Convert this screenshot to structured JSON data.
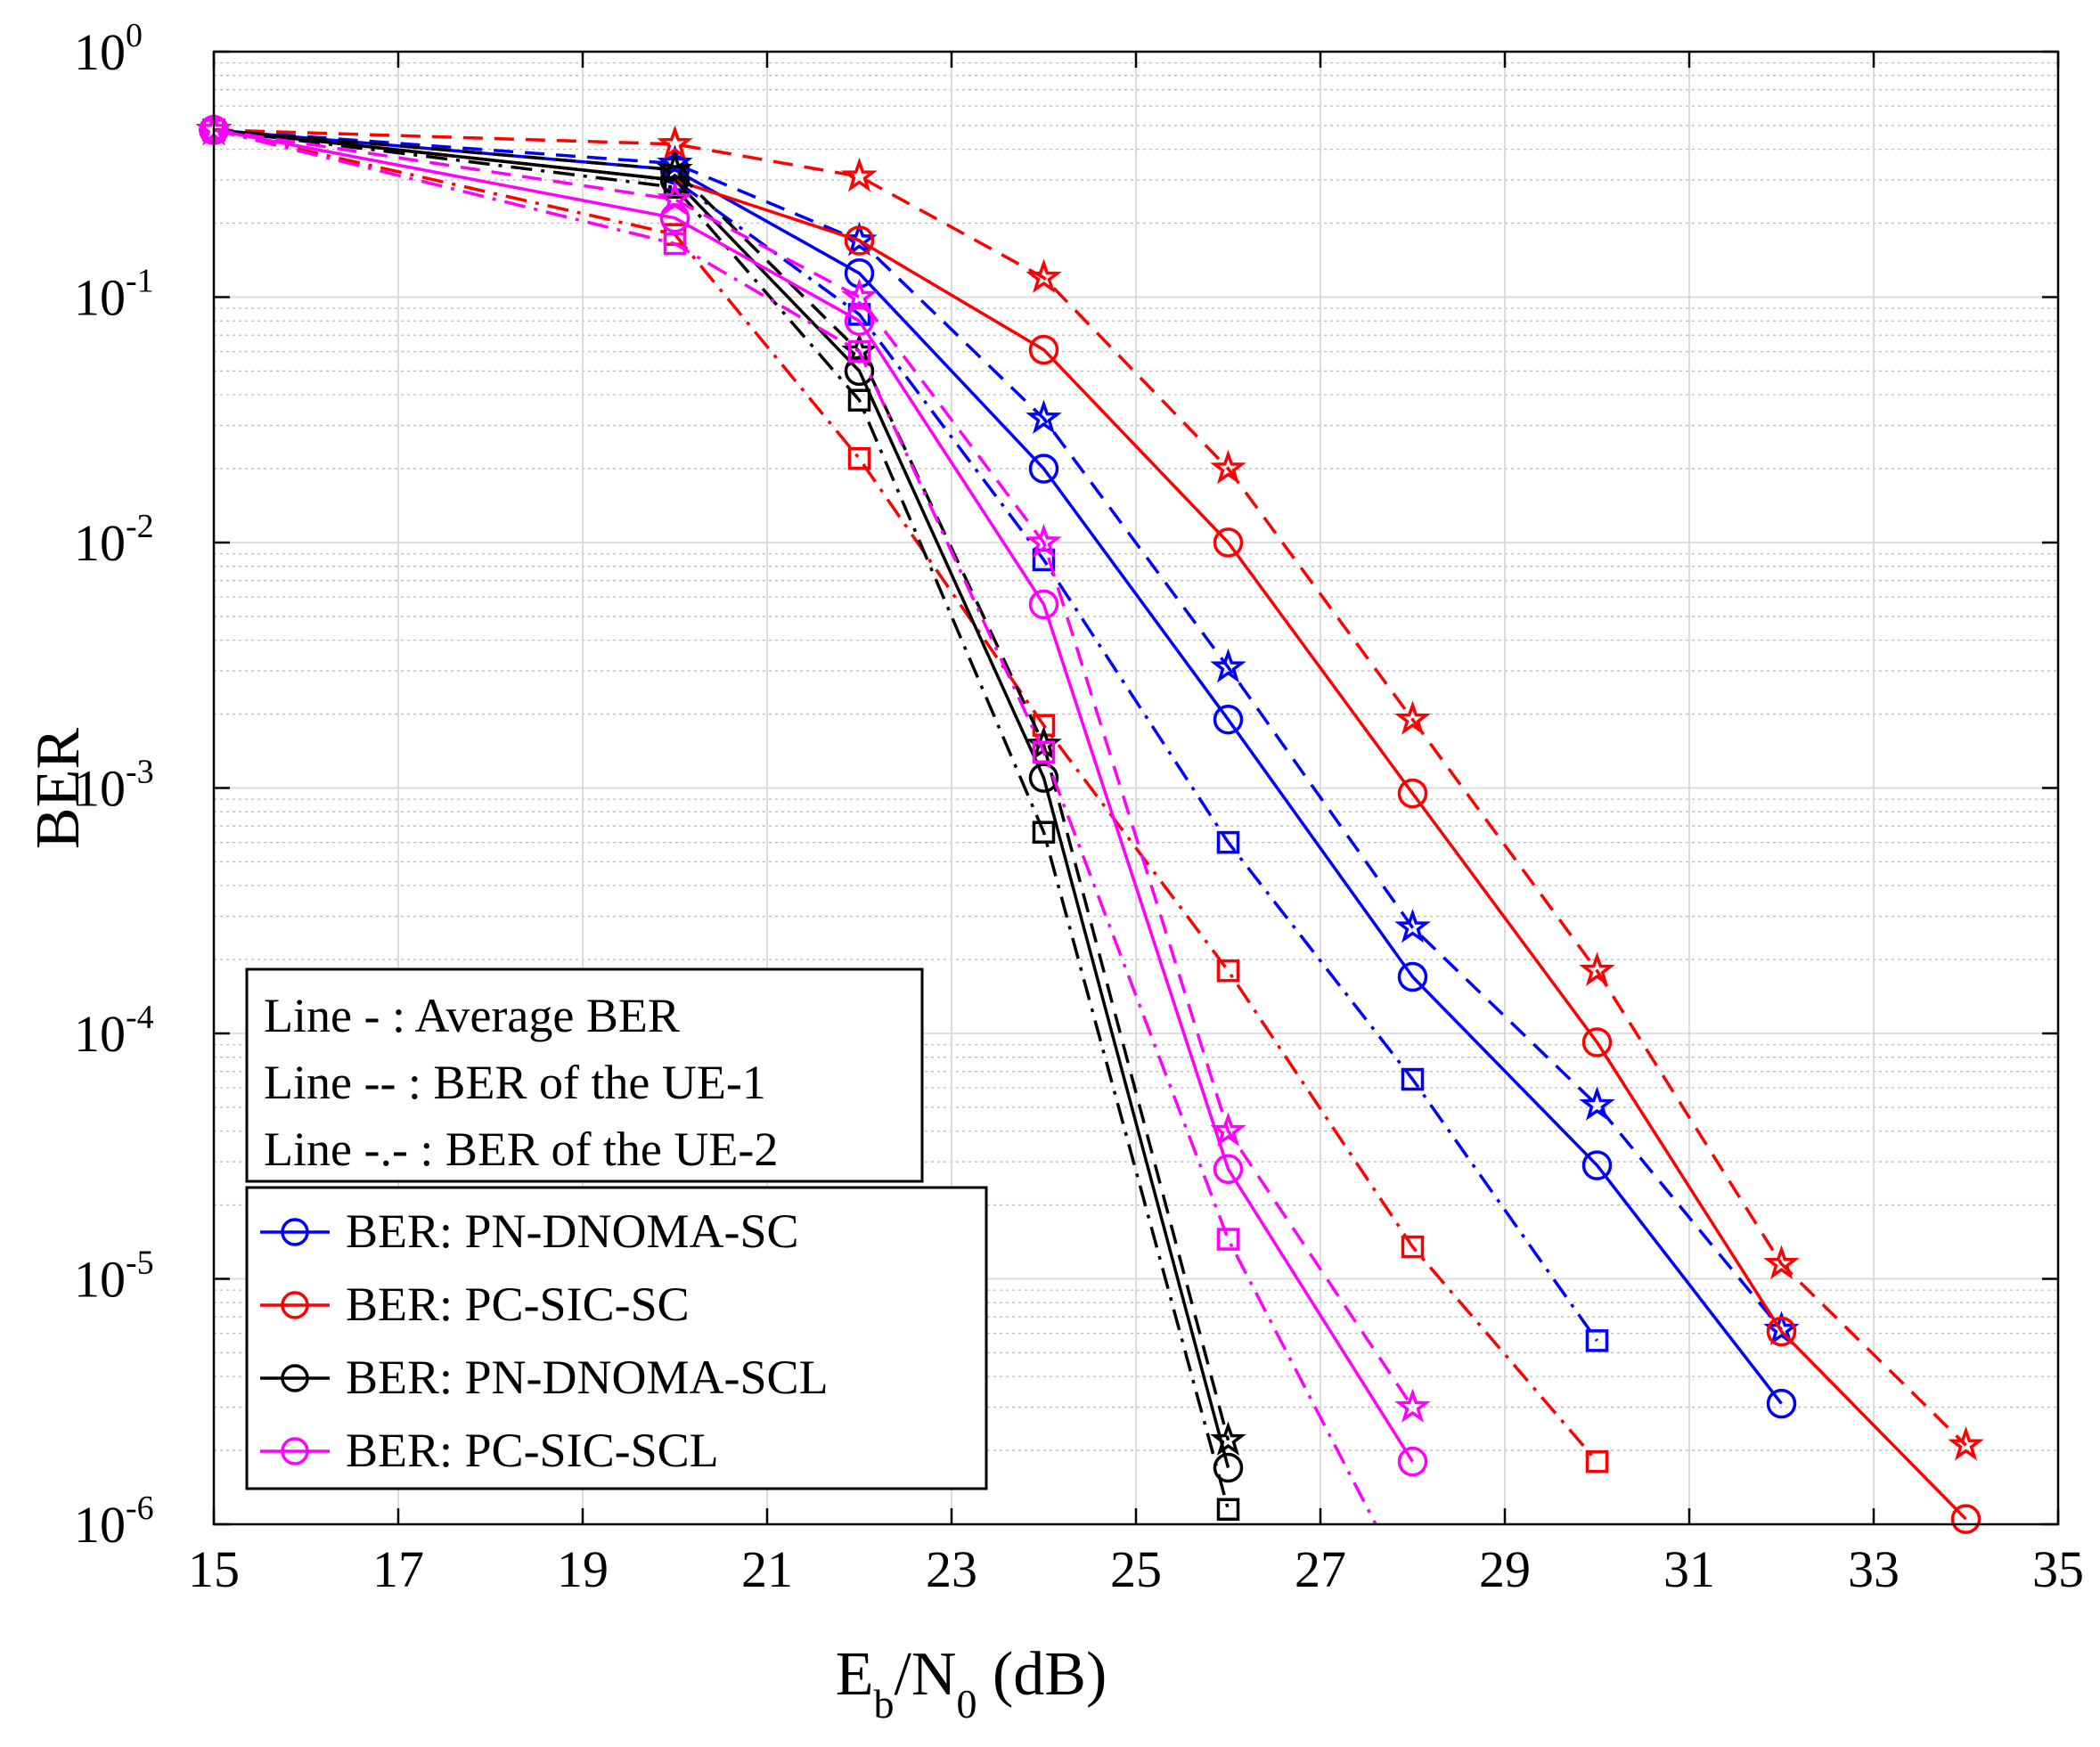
{
  "chart_data": {
    "type": "line",
    "yscale": "log",
    "xlabel": {
      "main": "E",
      "sub1": "b",
      "mid": "/N",
      "sub2": "0",
      "tail": " (dB)"
    },
    "ylabel": "BER",
    "xlim": [
      15,
      35
    ],
    "ylim": [
      1e-06,
      1
    ],
    "xticks": [
      15,
      17,
      19,
      21,
      23,
      25,
      27,
      29,
      31,
      33,
      35
    ],
    "yticks": [
      {
        "value": 1,
        "base": "10",
        "exp": "0"
      },
      {
        "value": 0.1,
        "base": "10",
        "exp": "-1"
      },
      {
        "value": 0.01,
        "base": "10",
        "exp": "-2"
      },
      {
        "value": 0.001,
        "base": "10",
        "exp": "-3"
      },
      {
        "value": 0.0001,
        "base": "10",
        "exp": "-4"
      },
      {
        "value": 1e-05,
        "base": "10",
        "exp": "-5"
      },
      {
        "value": 1e-06,
        "base": "10",
        "exp": "-6"
      }
    ],
    "grid": true,
    "style_legend": [
      "Line - : Average BER",
      "Line -- :  BER of the UE-1",
      "Line -.- : BER of the UE-2"
    ],
    "series_legend": [
      {
        "label": "BER: PN-DNOMA-SC",
        "color": "#0000ff"
      },
      {
        "label": "BER: PC-SIC-SC",
        "color": "#ff0000"
      },
      {
        "label": "BER: PN-DNOMA-SCL",
        "color": "#000000"
      },
      {
        "label": "BER: PC-SIC-SCL",
        "color": "#ff00ff"
      }
    ],
    "series": [
      {
        "name": "PN-DNOMA-SC average",
        "color": "#0000ff",
        "dash": "solid",
        "marker": "circle",
        "x": [
          15,
          20,
          22,
          24,
          26,
          28,
          30,
          32
        ],
        "y": [
          0.48,
          0.33,
          0.125,
          0.02,
          0.0019,
          0.00017,
          2.9e-05,
          3.1e-06
        ]
      },
      {
        "name": "PN-DNOMA-SC UE-1",
        "color": "#0000ff",
        "dash": "dashed",
        "marker": "star",
        "x": [
          15,
          20,
          22,
          24,
          26,
          28,
          30,
          32
        ],
        "y": [
          0.48,
          0.35,
          0.17,
          0.032,
          0.0031,
          0.00027,
          5.1e-05,
          6.2e-06
        ]
      },
      {
        "name": "PN-DNOMA-SC UE-2",
        "color": "#0000ff",
        "dash": "dashdot",
        "marker": "square",
        "x": [
          15,
          20,
          22,
          24,
          26,
          28,
          30
        ],
        "y": [
          0.48,
          0.3,
          0.085,
          0.0085,
          0.0006,
          6.5e-05,
          5.6e-06
        ]
      },
      {
        "name": "PC-SIC-SC average",
        "color": "#ff0000",
        "dash": "solid",
        "marker": "circle",
        "x": [
          15,
          20,
          22,
          24,
          26,
          28,
          30,
          32,
          34
        ],
        "y": [
          0.48,
          0.3,
          0.17,
          0.061,
          0.01,
          0.00095,
          9.2e-05,
          6.1e-06,
          1.05e-06
        ]
      },
      {
        "name": "PC-SIC-SC UE-1",
        "color": "#ff0000",
        "dash": "dashed",
        "marker": "star",
        "x": [
          15,
          20,
          22,
          24,
          26,
          28,
          30,
          32,
          34
        ],
        "y": [
          0.48,
          0.42,
          0.31,
          0.12,
          0.02,
          0.0019,
          0.00018,
          1.15e-05,
          2.1e-06
        ]
      },
      {
        "name": "PC-SIC-SC UE-2",
        "color": "#ff0000",
        "dash": "dashdot",
        "marker": "square",
        "x": [
          15,
          20,
          22,
          24,
          26,
          28,
          30
        ],
        "y": [
          0.48,
          0.18,
          0.022,
          0.0018,
          0.00018,
          1.35e-05,
          1.8e-06
        ]
      },
      {
        "name": "PN-DNOMA-SCL average",
        "color": "#000000",
        "dash": "solid",
        "marker": "circle",
        "x": [
          15,
          20,
          22,
          24,
          26
        ],
        "y": [
          0.48,
          0.3,
          0.05,
          0.0011,
          1.7e-06
        ]
      },
      {
        "name": "PN-DNOMA-SCL UE-1",
        "color": "#000000",
        "dash": "dashed",
        "marker": "star",
        "x": [
          15,
          20,
          22,
          24,
          26
        ],
        "y": [
          0.48,
          0.33,
          0.06,
          0.0015,
          2.2e-06
        ]
      },
      {
        "name": "PN-DNOMA-SCL UE-2",
        "color": "#000000",
        "dash": "dashdot",
        "marker": "square",
        "x": [
          15,
          20,
          22,
          24,
          26
        ],
        "y": [
          0.48,
          0.28,
          0.038,
          0.00066,
          1.15e-06
        ]
      },
      {
        "name": "PC-SIC-SCL average",
        "color": "#ff00ff",
        "dash": "solid",
        "marker": "circle",
        "x": [
          15,
          20,
          22,
          24,
          26,
          28
        ],
        "y": [
          0.48,
          0.21,
          0.08,
          0.0056,
          2.8e-05,
          1.8e-06
        ]
      },
      {
        "name": "PC-SIC-SCL UE-1",
        "color": "#ff00ff",
        "dash": "dashed",
        "marker": "star",
        "x": [
          15,
          20,
          22,
          24,
          26,
          28
        ],
        "y": [
          0.48,
          0.25,
          0.1,
          0.01,
          4e-05,
          3e-06
        ]
      },
      {
        "name": "PC-SIC-SCL UE-2",
        "color": "#ff00ff",
        "dash": "dashdot",
        "marker": "square",
        "x": [
          15,
          20,
          22,
          24,
          26,
          27.6
        ],
        "y": [
          0.48,
          0.165,
          0.06,
          0.0014,
          1.45e-05,
          1e-06
        ],
        "marker_count": 5
      }
    ]
  }
}
